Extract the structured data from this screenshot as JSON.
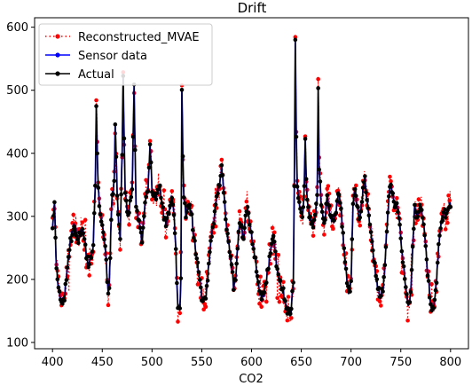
{
  "chart_data": {
    "type": "line",
    "title": "Drift",
    "xlabel": "CO2",
    "ylabel": "",
    "xlim": [
      382,
      818
    ],
    "ylim": [
      90,
      615
    ],
    "x_ticks": [
      400,
      450,
      500,
      550,
      600,
      650,
      700,
      750,
      800
    ],
    "y_ticks": [
      100,
      200,
      300,
      400,
      500,
      600
    ],
    "grid": false,
    "legend_position": "top-left",
    "x_range": [
      400,
      800
    ],
    "actual_key_points": [
      [
        400,
        288
      ],
      [
        402,
        318
      ],
      [
        404,
        215
      ],
      [
        406,
        190
      ],
      [
        408,
        170
      ],
      [
        410,
        165
      ],
      [
        412,
        170
      ],
      [
        414,
        205
      ],
      [
        416,
        230
      ],
      [
        418,
        260
      ],
      [
        420,
        275
      ],
      [
        422,
        290
      ],
      [
        424,
        270
      ],
      [
        426,
        260
      ],
      [
        428,
        275
      ],
      [
        430,
        280
      ],
      [
        432,
        265
      ],
      [
        434,
        240
      ],
      [
        436,
        220
      ],
      [
        438,
        230
      ],
      [
        440,
        250
      ],
      [
        441,
        260
      ],
      [
        442,
        300
      ],
      [
        443,
        350
      ],
      [
        444,
        473
      ],
      [
        445,
        400
      ],
      [
        446,
        340
      ],
      [
        447,
        320
      ],
      [
        448,
        300
      ],
      [
        450,
        290
      ],
      [
        452,
        270
      ],
      [
        454,
        230
      ],
      [
        455,
        195
      ],
      [
        456,
        183
      ],
      [
        457,
        190
      ],
      [
        458,
        240
      ],
      [
        459,
        300
      ],
      [
        460,
        330
      ],
      [
        462,
        350
      ],
      [
        463,
        445
      ],
      [
        464,
        400
      ],
      [
        465,
        330
      ],
      [
        466,
        300
      ],
      [
        468,
        270
      ],
      [
        469,
        340
      ],
      [
        470,
        400
      ],
      [
        471,
        527
      ],
      [
        472,
        420
      ],
      [
        473,
        340
      ],
      [
        474,
        320
      ],
      [
        476,
        300
      ],
      [
        478,
        320
      ],
      [
        480,
        340
      ],
      [
        481,
        420
      ],
      [
        482,
        508
      ],
      [
        483,
        400
      ],
      [
        484,
        320
      ],
      [
        486,
        300
      ],
      [
        488,
        280
      ],
      [
        490,
        255
      ],
      [
        492,
        300
      ],
      [
        494,
        330
      ],
      [
        496,
        340
      ],
      [
        497,
        380
      ],
      [
        498,
        415
      ],
      [
        499,
        380
      ],
      [
        500,
        340
      ],
      [
        502,
        335
      ],
      [
        504,
        330
      ],
      [
        506,
        340
      ],
      [
        508,
        350
      ],
      [
        510,
        320
      ],
      [
        512,
        300
      ],
      [
        514,
        290
      ],
      [
        516,
        300
      ],
      [
        518,
        310
      ],
      [
        520,
        330
      ],
      [
        522,
        300
      ],
      [
        524,
        250
      ],
      [
        525,
        190
      ],
      [
        526,
        160
      ],
      [
        527,
        150
      ],
      [
        528,
        155
      ],
      [
        529,
        200
      ],
      [
        530,
        498
      ],
      [
        531,
        400
      ],
      [
        532,
        330
      ],
      [
        534,
        300
      ],
      [
        536,
        310
      ],
      [
        538,
        320
      ],
      [
        540,
        300
      ],
      [
        542,
        270
      ],
      [
        544,
        240
      ],
      [
        546,
        220
      ],
      [
        548,
        200
      ],
      [
        550,
        170
      ],
      [
        552,
        165
      ],
      [
        554,
        175
      ],
      [
        556,
        200
      ],
      [
        558,
        240
      ],
      [
        560,
        270
      ],
      [
        562,
        290
      ],
      [
        564,
        320
      ],
      [
        566,
        340
      ],
      [
        568,
        350
      ],
      [
        570,
        383
      ],
      [
        572,
        340
      ],
      [
        574,
        300
      ],
      [
        576,
        270
      ],
      [
        578,
        240
      ],
      [
        580,
        220
      ],
      [
        582,
        190
      ],
      [
        584,
        200
      ],
      [
        586,
        250
      ],
      [
        588,
        290
      ],
      [
        590,
        280
      ],
      [
        592,
        260
      ],
      [
        594,
        300
      ],
      [
        596,
        310
      ],
      [
        598,
        290
      ],
      [
        600,
        270
      ],
      [
        602,
        250
      ],
      [
        604,
        230
      ],
      [
        606,
        200
      ],
      [
        608,
        180
      ],
      [
        610,
        170
      ],
      [
        612,
        175
      ],
      [
        614,
        190
      ],
      [
        616,
        210
      ],
      [
        618,
        230
      ],
      [
        620,
        250
      ],
      [
        622,
        270
      ],
      [
        624,
        240
      ],
      [
        626,
        210
      ],
      [
        628,
        200
      ],
      [
        630,
        190
      ],
      [
        632,
        180
      ],
      [
        634,
        165
      ],
      [
        636,
        150
      ],
      [
        638,
        145
      ],
      [
        640,
        150
      ],
      [
        642,
        200
      ],
      [
        643,
        350
      ],
      [
        644,
        586
      ],
      [
        645,
        430
      ],
      [
        646,
        350
      ],
      [
        648,
        320
      ],
      [
        650,
        300
      ],
      [
        652,
        310
      ],
      [
        653,
        350
      ],
      [
        654,
        425
      ],
      [
        655,
        360
      ],
      [
        656,
        320
      ],
      [
        658,
        300
      ],
      [
        660,
        290
      ],
      [
        662,
        285
      ],
      [
        664,
        300
      ],
      [
        666,
        330
      ],
      [
        667,
        500
      ],
      [
        668,
        380
      ],
      [
        670,
        320
      ],
      [
        672,
        290
      ],
      [
        674,
        300
      ],
      [
        676,
        330
      ],
      [
        678,
        310
      ],
      [
        680,
        300
      ],
      [
        682,
        290
      ],
      [
        684,
        300
      ],
      [
        686,
        320
      ],
      [
        688,
        340
      ],
      [
        690,
        310
      ],
      [
        692,
        270
      ],
      [
        694,
        230
      ],
      [
        696,
        195
      ],
      [
        698,
        175
      ],
      [
        700,
        200
      ],
      [
        702,
        320
      ],
      [
        704,
        340
      ],
      [
        706,
        320
      ],
      [
        708,
        300
      ],
      [
        710,
        310
      ],
      [
        712,
        340
      ],
      [
        714,
        363
      ],
      [
        715,
        340
      ],
      [
        716,
        320
      ],
      [
        718,
        300
      ],
      [
        720,
        280
      ],
      [
        722,
        250
      ],
      [
        724,
        220
      ],
      [
        726,
        195
      ],
      [
        728,
        180
      ],
      [
        730,
        175
      ],
      [
        732,
        185
      ],
      [
        734,
        220
      ],
      [
        736,
        280
      ],
      [
        738,
        330
      ],
      [
        740,
        355
      ],
      [
        742,
        330
      ],
      [
        744,
        310
      ],
      [
        746,
        320
      ],
      [
        748,
        300
      ],
      [
        750,
        270
      ],
      [
        752,
        230
      ],
      [
        754,
        200
      ],
      [
        756,
        170
      ],
      [
        758,
        160
      ],
      [
        760,
        175
      ],
      [
        762,
        250
      ],
      [
        764,
        320
      ],
      [
        766,
        300
      ],
      [
        768,
        310
      ],
      [
        770,
        315
      ],
      [
        772,
        300
      ],
      [
        774,
        270
      ],
      [
        776,
        230
      ],
      [
        778,
        195
      ],
      [
        780,
        160
      ],
      [
        782,
        150
      ],
      [
        784,
        165
      ],
      [
        786,
        200
      ],
      [
        788,
        250
      ],
      [
        790,
        280
      ],
      [
        792,
        300
      ],
      [
        794,
        310
      ],
      [
        796,
        300
      ],
      [
        798,
        315
      ],
      [
        800,
        320
      ]
    ],
    "series": [
      {
        "name": "Reconstructed_MVAE",
        "color": "#ff0000",
        "line_style": "dotted",
        "marker": "circle"
      },
      {
        "name": "Sensor data",
        "color": "#0000ff",
        "line_style": "solid",
        "marker": "circle"
      },
      {
        "name": "Actual",
        "color": "#000000",
        "line_style": "solid",
        "marker": "circle"
      }
    ]
  }
}
